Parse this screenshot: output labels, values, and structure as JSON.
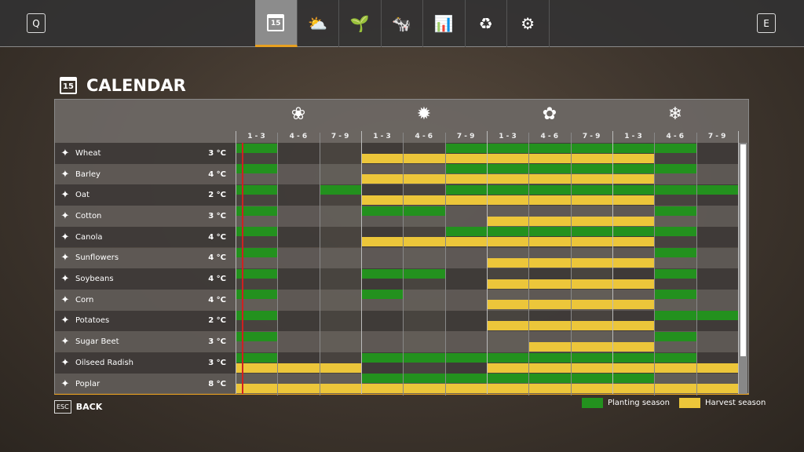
{
  "topbar": {
    "left_key": "Q",
    "right_key": "E",
    "tabs": [
      {
        "icon": "calendar-icon",
        "glyph": "15",
        "active": true
      },
      {
        "icon": "weather-icon",
        "glyph": "⛅"
      },
      {
        "icon": "sprout-icon",
        "glyph": "🌱"
      },
      {
        "icon": "cow-icon",
        "glyph": "🐄"
      },
      {
        "icon": "statistics-icon",
        "glyph": "📊"
      },
      {
        "icon": "cycle-icon",
        "glyph": "♻"
      },
      {
        "icon": "settings-icon",
        "glyph": "⚙"
      }
    ]
  },
  "page": {
    "title": "CALENDAR",
    "calendar_day": "15"
  },
  "seasons": [
    {
      "icon": "spring-flower-icon",
      "glyph": "❀"
    },
    {
      "icon": "summer-sun-icon",
      "glyph": "✹"
    },
    {
      "icon": "autumn-leaf-icon",
      "glyph": "✿"
    },
    {
      "icon": "winter-snowflake-icon",
      "glyph": "❄"
    }
  ],
  "periods": [
    "1 - 3",
    "4 - 6",
    "7 - 9",
    "1 - 3",
    "4 - 6",
    "7 - 9",
    "1 - 3",
    "4 - 6",
    "7 - 9",
    "1 - 3",
    "4 - 6",
    "7 - 9"
  ],
  "current_period_fraction": 0.15,
  "crops": [
    {
      "name": "Wheat",
      "temp": "3 °C",
      "icon": "wheat-icon",
      "planting": [
        0,
        5,
        6,
        7,
        8,
        9,
        10
      ],
      "harvest": [
        3,
        4,
        5,
        6,
        7,
        8,
        9
      ]
    },
    {
      "name": "Barley",
      "temp": "4 °C",
      "icon": "barley-icon",
      "planting": [
        0,
        5,
        6,
        7,
        8,
        9,
        10
      ],
      "harvest": [
        3,
        4,
        5,
        6,
        7,
        8,
        9
      ]
    },
    {
      "name": "Oat",
      "temp": "2 °C",
      "icon": "oat-icon",
      "planting": [
        0,
        2,
        5,
        6,
        7,
        8,
        9,
        10,
        11
      ],
      "harvest": [
        3,
        4,
        5,
        6,
        7,
        8,
        9
      ]
    },
    {
      "name": "Cotton",
      "temp": "3 °C",
      "icon": "cotton-icon",
      "planting": [
        0,
        3,
        4,
        10
      ],
      "harvest": [
        6,
        7,
        8,
        9
      ]
    },
    {
      "name": "Canola",
      "temp": "4 °C",
      "icon": "canola-icon",
      "planting": [
        0,
        5,
        6,
        7,
        8,
        9,
        10
      ],
      "harvest": [
        3,
        4,
        5,
        6,
        7,
        8,
        9
      ]
    },
    {
      "name": "Sunflowers",
      "temp": "4 °C",
      "icon": "sunflower-icon",
      "planting": [
        0,
        10
      ],
      "harvest": [
        6,
        7,
        8,
        9
      ]
    },
    {
      "name": "Soybeans",
      "temp": "4 °C",
      "icon": "soybean-icon",
      "planting": [
        0,
        3,
        4,
        10
      ],
      "harvest": [
        6,
        7,
        8,
        9
      ]
    },
    {
      "name": "Corn",
      "temp": "4 °C",
      "icon": "corn-icon",
      "planting": [
        0,
        3,
        10
      ],
      "harvest": [
        6,
        7,
        8,
        9
      ]
    },
    {
      "name": "Potatoes",
      "temp": "2 °C",
      "icon": "potato-icon",
      "planting": [
        0,
        10,
        11
      ],
      "harvest": [
        6,
        7,
        8,
        9
      ]
    },
    {
      "name": "Sugar Beet",
      "temp": "3 °C",
      "icon": "sugar-beet-icon",
      "planting": [
        0,
        10
      ],
      "harvest": [
        7,
        8,
        9
      ]
    },
    {
      "name": "Oilseed Radish",
      "temp": "3 °C",
      "icon": "oilseed-radish-icon",
      "planting": [
        0,
        3,
        4,
        5,
        6,
        7,
        8,
        9,
        10
      ],
      "harvest": [
        0,
        1,
        2,
        6,
        7,
        8,
        9,
        10,
        11
      ]
    },
    {
      "name": "Poplar",
      "temp": "8 °C",
      "icon": "poplar-icon",
      "planting": [
        3,
        4,
        5,
        6,
        7,
        8,
        9
      ],
      "harvest": [
        0,
        1,
        2,
        3,
        4,
        5,
        6,
        7,
        8,
        9,
        10,
        11
      ]
    }
  ],
  "colors": {
    "planting": "#23911e",
    "harvest": "#ecc63a",
    "current": "#d02020"
  },
  "legend": {
    "planting": "Planting season",
    "harvest": "Harvest season"
  },
  "footer": {
    "esc_key": "ESC",
    "back_label": "BACK"
  }
}
